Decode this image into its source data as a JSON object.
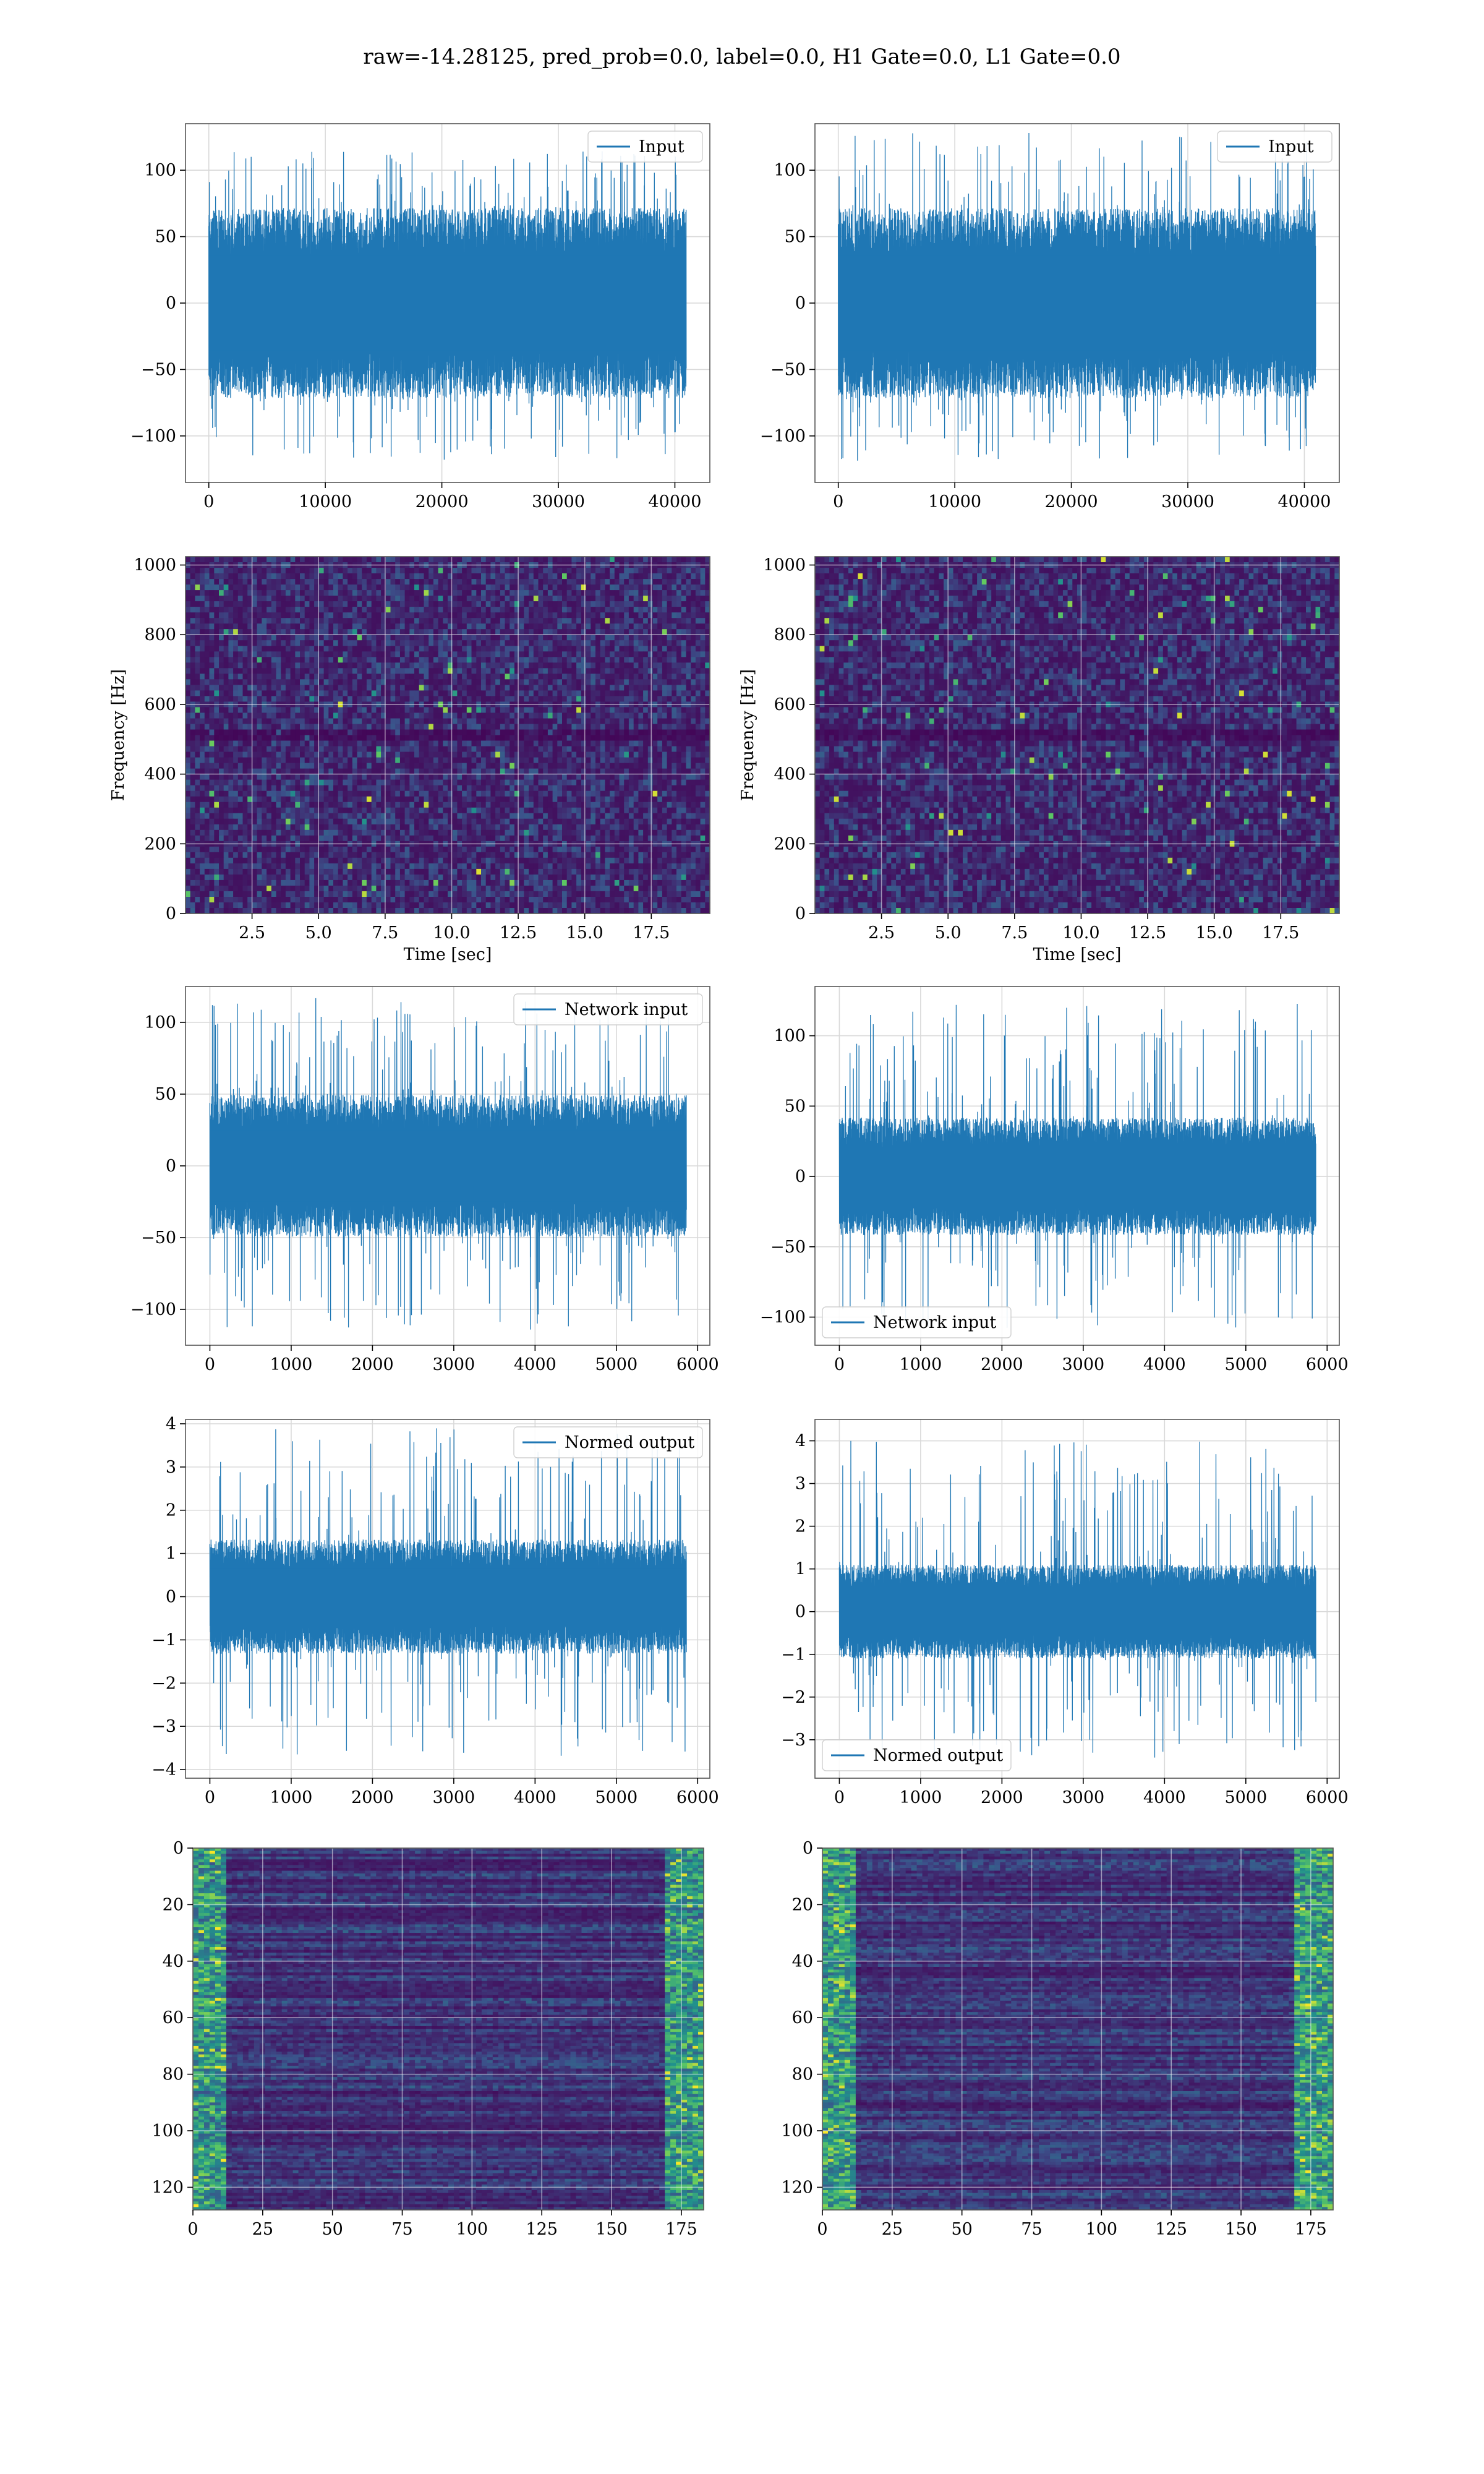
{
  "figure": {
    "title": "raw=-14.28125, pred_prob=0.0, label=0.0, H1 Gate=0.0, L1 Gate=0.0",
    "colors": {
      "line": "#1f77b4",
      "grid": "#d9d9d9",
      "viridis_dark": "#440154",
      "viridis_mid": "#3b528b",
      "viridis_teal": "#21918c",
      "viridis_green": "#5ec962",
      "viridis_yellow": "#fde725"
    }
  },
  "chart_data": [
    {
      "id": "input-h1",
      "type": "line",
      "title": "",
      "xlabel": "",
      "ylabel": "",
      "xlim": [
        -2000,
        43000
      ],
      "ylim": [
        -135,
        135
      ],
      "xticks": [
        0,
        10000,
        20000,
        30000,
        40000
      ],
      "yticks": [
        -100,
        -50,
        0,
        50,
        100
      ],
      "series": [
        {
          "name": "Input",
          "x_range": [
            0,
            40960
          ],
          "band": [
            -65,
            65
          ],
          "peaks": [
            -118,
            115
          ]
        }
      ],
      "legend": "upper right"
    },
    {
      "id": "input-l1",
      "type": "line",
      "title": "",
      "xlabel": "",
      "ylabel": "",
      "xlim": [
        -2000,
        43000
      ],
      "ylim": [
        -135,
        135
      ],
      "xticks": [
        0,
        10000,
        20000,
        30000,
        40000
      ],
      "yticks": [
        -100,
        -50,
        0,
        50,
        100
      ],
      "series": [
        {
          "name": "Input",
          "x_range": [
            0,
            40960
          ],
          "band": [
            -65,
            65
          ],
          "peaks": [
            -120,
            128
          ]
        }
      ],
      "legend": "upper right"
    },
    {
      "id": "spectrogram-h1",
      "type": "heatmap",
      "title": "",
      "xlabel": "Time [sec]",
      "ylabel": "Frequency [Hz]",
      "xlim": [
        0,
        19.7
      ],
      "ylim": [
        0,
        1024
      ],
      "xticks": [
        2.5,
        5.0,
        7.5,
        10.0,
        12.5,
        15.0,
        17.5
      ],
      "yticks": [
        0,
        200,
        400,
        600,
        800,
        1000
      ],
      "colormap": "viridis"
    },
    {
      "id": "spectrogram-l1",
      "type": "heatmap",
      "title": "",
      "xlabel": "Time [sec]",
      "ylabel": "Frequency [Hz]",
      "xlim": [
        0,
        19.7
      ],
      "ylim": [
        0,
        1024
      ],
      "xticks": [
        2.5,
        5.0,
        7.5,
        10.0,
        12.5,
        15.0,
        17.5
      ],
      "yticks": [
        0,
        200,
        400,
        600,
        800,
        1000
      ],
      "colormap": "viridis"
    },
    {
      "id": "network-input-h1",
      "type": "line",
      "title": "",
      "xlabel": "",
      "ylabel": "",
      "xlim": [
        -300,
        6150
      ],
      "ylim": [
        -125,
        125
      ],
      "xticks": [
        0,
        1000,
        2000,
        3000,
        4000,
        5000,
        6000
      ],
      "yticks": [
        -100,
        -50,
        0,
        50,
        100
      ],
      "series": [
        {
          "name": "Network input",
          "x_range": [
            0,
            5860
          ],
          "band": [
            -45,
            45
          ],
          "peaks": [
            -115,
            117
          ]
        }
      ],
      "legend": "upper right"
    },
    {
      "id": "network-input-l1",
      "type": "line",
      "title": "",
      "xlabel": "",
      "ylabel": "",
      "xlim": [
        -300,
        6150
      ],
      "ylim": [
        -120,
        135
      ],
      "xticks": [
        0,
        1000,
        2000,
        3000,
        4000,
        5000,
        6000
      ],
      "yticks": [
        -100,
        -50,
        0,
        50,
        100
      ],
      "series": [
        {
          "name": "Network input",
          "x_range": [
            0,
            5860
          ],
          "band": [
            -38,
            38
          ],
          "peaks": [
            -108,
            125
          ]
        }
      ],
      "legend": "lower left"
    },
    {
      "id": "normed-output-h1",
      "type": "line",
      "title": "",
      "xlabel": "",
      "ylabel": "",
      "xlim": [
        -300,
        6150
      ],
      "ylim": [
        -4.2,
        4.1
      ],
      "xticks": [
        0,
        1000,
        2000,
        3000,
        4000,
        5000,
        6000
      ],
      "yticks": [
        -4,
        -3,
        -2,
        -1,
        0,
        1,
        2,
        3,
        4
      ],
      "series": [
        {
          "name": "Normed output",
          "x_range": [
            0,
            5860
          ],
          "band": [
            -1.2,
            1.2
          ],
          "peaks": [
            -3.7,
            3.9
          ]
        }
      ],
      "legend": "upper right"
    },
    {
      "id": "normed-output-l1",
      "type": "line",
      "title": "",
      "xlabel": "",
      "ylabel": "",
      "xlim": [
        -300,
        6150
      ],
      "ylim": [
        -3.9,
        4.5
      ],
      "xticks": [
        0,
        1000,
        2000,
        3000,
        4000,
        5000,
        6000
      ],
      "yticks": [
        -3,
        -2,
        -1,
        0,
        1,
        2,
        3,
        4
      ],
      "series": [
        {
          "name": "Normed output",
          "x_range": [
            0,
            5860
          ],
          "band": [
            -1.0,
            1.0
          ],
          "peaks": [
            -3.5,
            4.0
          ]
        }
      ],
      "legend": "lower left"
    },
    {
      "id": "feature-map-h1",
      "type": "heatmap",
      "title": "",
      "xlabel": "",
      "ylabel": "",
      "xlim": [
        0,
        183
      ],
      "ylim": [
        128,
        0
      ],
      "xticks": [
        0,
        25,
        50,
        75,
        100,
        125,
        150,
        175
      ],
      "yticks": [
        0,
        20,
        40,
        60,
        80,
        100,
        120
      ],
      "colormap": "viridis"
    },
    {
      "id": "feature-map-l1",
      "type": "heatmap",
      "title": "",
      "xlabel": "",
      "ylabel": "",
      "xlim": [
        0,
        183
      ],
      "ylim": [
        128,
        0
      ],
      "xticks": [
        0,
        25,
        50,
        75,
        100,
        125,
        150,
        175
      ],
      "yticks": [
        0,
        20,
        40,
        60,
        80,
        100,
        120
      ],
      "colormap": "viridis"
    }
  ]
}
